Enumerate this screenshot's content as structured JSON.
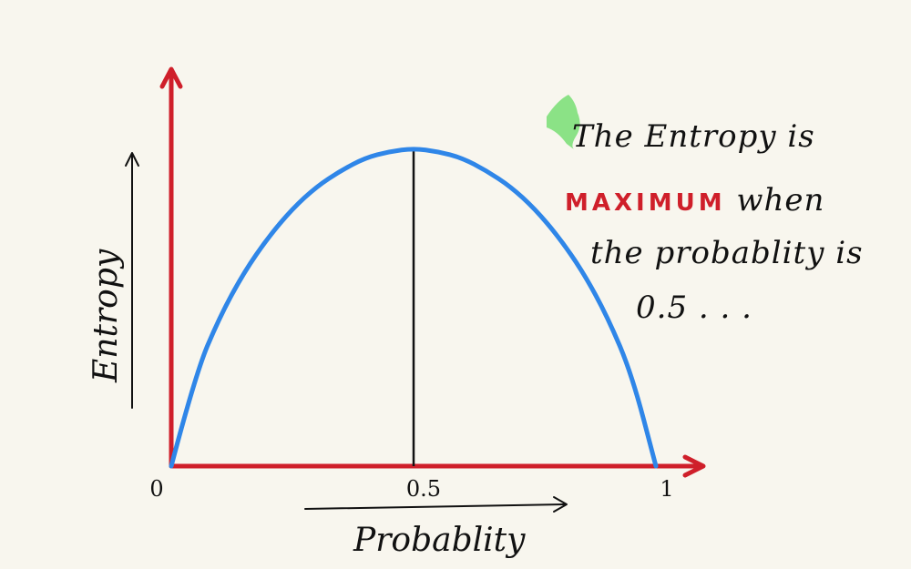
{
  "chart_data": {
    "type": "line",
    "xlabel": "Probablity",
    "ylabel": "Entropy",
    "x_ticks": [
      "0",
      "0.5",
      "1"
    ],
    "x": [
      0,
      0.05,
      0.1,
      0.15,
      0.2,
      0.25,
      0.3,
      0.35,
      0.4,
      0.45,
      0.5,
      0.55,
      0.6,
      0.65,
      0.7,
      0.75,
      0.8,
      0.85,
      0.9,
      0.95,
      1
    ],
    "y": [
      0,
      0.29,
      0.47,
      0.61,
      0.72,
      0.81,
      0.88,
      0.93,
      0.97,
      0.99,
      1,
      0.99,
      0.97,
      0.93,
      0.88,
      0.81,
      0.72,
      0.61,
      0.47,
      0.29,
      0
    ],
    "xlim": [
      0,
      1
    ],
    "ylim": [
      0,
      1
    ],
    "peak_marker_x": 0.5,
    "grid": false,
    "series_color": "#2f86e8",
    "axis_color": "#cf1f2a",
    "marker_color": "#111111"
  },
  "annotation": {
    "line1": "The Entropy is",
    "emphasis": "MAXIMUM",
    "line2_rest": "when",
    "line3": "the probablity is",
    "line4": "0.5 . . ."
  },
  "highlight_color": "#7ee07a"
}
